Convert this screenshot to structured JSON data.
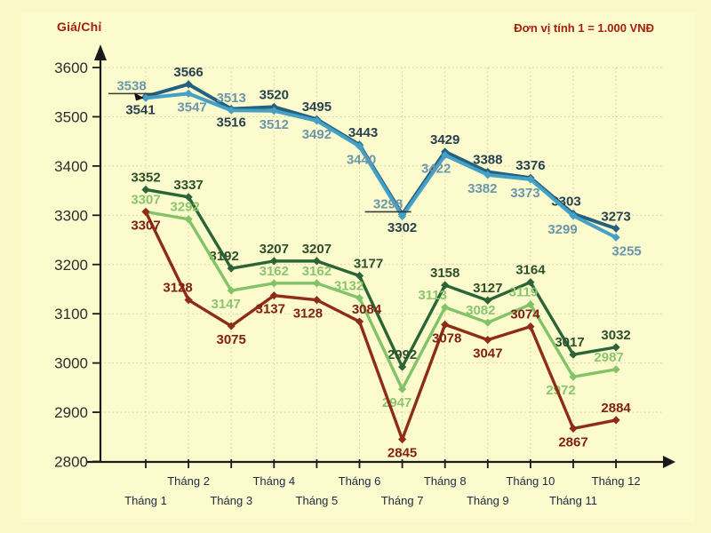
{
  "header": {
    "title": "Giá/Chỉ",
    "unit_note": "Đơn vị tính 1 = 1.000 VNĐ"
  },
  "colors": {
    "background": "#f9f8c6",
    "panel": "#fcfbce",
    "grid": "#cfcf9e",
    "axis": "#1a1a1a",
    "accent_red": "#a3200f"
  },
  "chart_data": {
    "type": "line",
    "title": "Giá/Chỉ",
    "unit_note": "Đơn vị tính 1 = 1.000 VNĐ",
    "categories": [
      "Tháng 1",
      "Tháng 2",
      "Tháng 3",
      "Tháng 4",
      "Tháng 5",
      "Tháng 6",
      "Tháng 7",
      "Tháng 8",
      "Tháng 9",
      "Tháng 10",
      "Tháng 11",
      "Tháng 12"
    ],
    "xlabel": "",
    "ylabel": "Giá/Chỉ (1.000 VNĐ)",
    "ylim": [
      2800,
      3600
    ],
    "ytick_step": 100,
    "grid": "dotted",
    "legend": "none",
    "series": [
      {
        "name": "dark-blue",
        "line_color": "#26607f",
        "label_color": "#27414f",
        "marker": "diamond",
        "values": [
          3541,
          3566,
          3516,
          3520,
          3495,
          3443,
          3302,
          3429,
          3388,
          3376,
          3303,
          3273
        ],
        "label_side": [
          "b",
          "a",
          "b",
          "a",
          "a",
          "a",
          "b",
          "a",
          "a",
          "a",
          "a",
          "a"
        ],
        "label_dx": [
          -6,
          0,
          0,
          0,
          0,
          4,
          0,
          0,
          0,
          0,
          -8,
          0
        ],
        "underlined_points": []
      },
      {
        "name": "light-blue",
        "line_color": "#45a0c5",
        "label_color": "#6a97ab",
        "marker": "diamond",
        "values": [
          3538,
          3547,
          3513,
          3512,
          3492,
          3440,
          3298,
          3422,
          3382,
          3373,
          3299,
          3255
        ],
        "label_side": [
          "a",
          "b",
          "a",
          "b",
          "b",
          "b",
          "a",
          "b",
          "b",
          "b",
          "b",
          "b"
        ],
        "label_dx": [
          -16,
          4,
          0,
          0,
          0,
          2,
          -16,
          -10,
          -6,
          -6,
          -12,
          12
        ],
        "underlined_points": [
          0,
          6
        ],
        "leader_arrow_point": 0
      },
      {
        "name": "dark-green",
        "line_color": "#2b6436",
        "label_color": "#2d4f2b",
        "marker": "diamond",
        "values": [
          3352,
          3337,
          3192,
          3207,
          3207,
          3177,
          2992,
          3158,
          3127,
          3164,
          3017,
          3032
        ],
        "label_side": [
          "a",
          "a",
          "a",
          "a",
          "a",
          "a",
          "a",
          "a",
          "a",
          "a",
          "a",
          "a"
        ],
        "label_dx": [
          0,
          0,
          -8,
          0,
          0,
          10,
          0,
          0,
          0,
          0,
          -4,
          0
        ],
        "underlined_points": []
      },
      {
        "name": "light-green",
        "line_color": "#83c367",
        "label_color": "#8cc470",
        "marker": "diamond",
        "values": [
          3307,
          3292,
          3147,
          3162,
          3162,
          3132,
          2947,
          3113,
          3082,
          3119,
          2972,
          2987
        ],
        "label_side": [
          "a",
          "a",
          "b",
          "a",
          "a",
          "a",
          "b",
          "a",
          "a",
          "a",
          "b",
          "a"
        ],
        "label_dx": [
          0,
          -4,
          -6,
          0,
          0,
          -12,
          -6,
          -14,
          -8,
          -8,
          -14,
          -8
        ],
        "underlined_points": []
      },
      {
        "name": "dark-red",
        "line_color": "#8e2c18",
        "label_color": "#802114",
        "marker": "diamond",
        "values": [
          3307,
          3128,
          3075,
          3137,
          3128,
          3084,
          2845,
          3078,
          3047,
          3074,
          2867,
          2884
        ],
        "label_side": [
          "b",
          "a",
          "b",
          "b",
          "b",
          "a",
          "b",
          "b",
          "b",
          "a",
          "b",
          "a"
        ],
        "label_dx": [
          0,
          -12,
          0,
          -4,
          -10,
          8,
          0,
          2,
          0,
          -6,
          0,
          0
        ],
        "underlined_points": []
      }
    ]
  }
}
